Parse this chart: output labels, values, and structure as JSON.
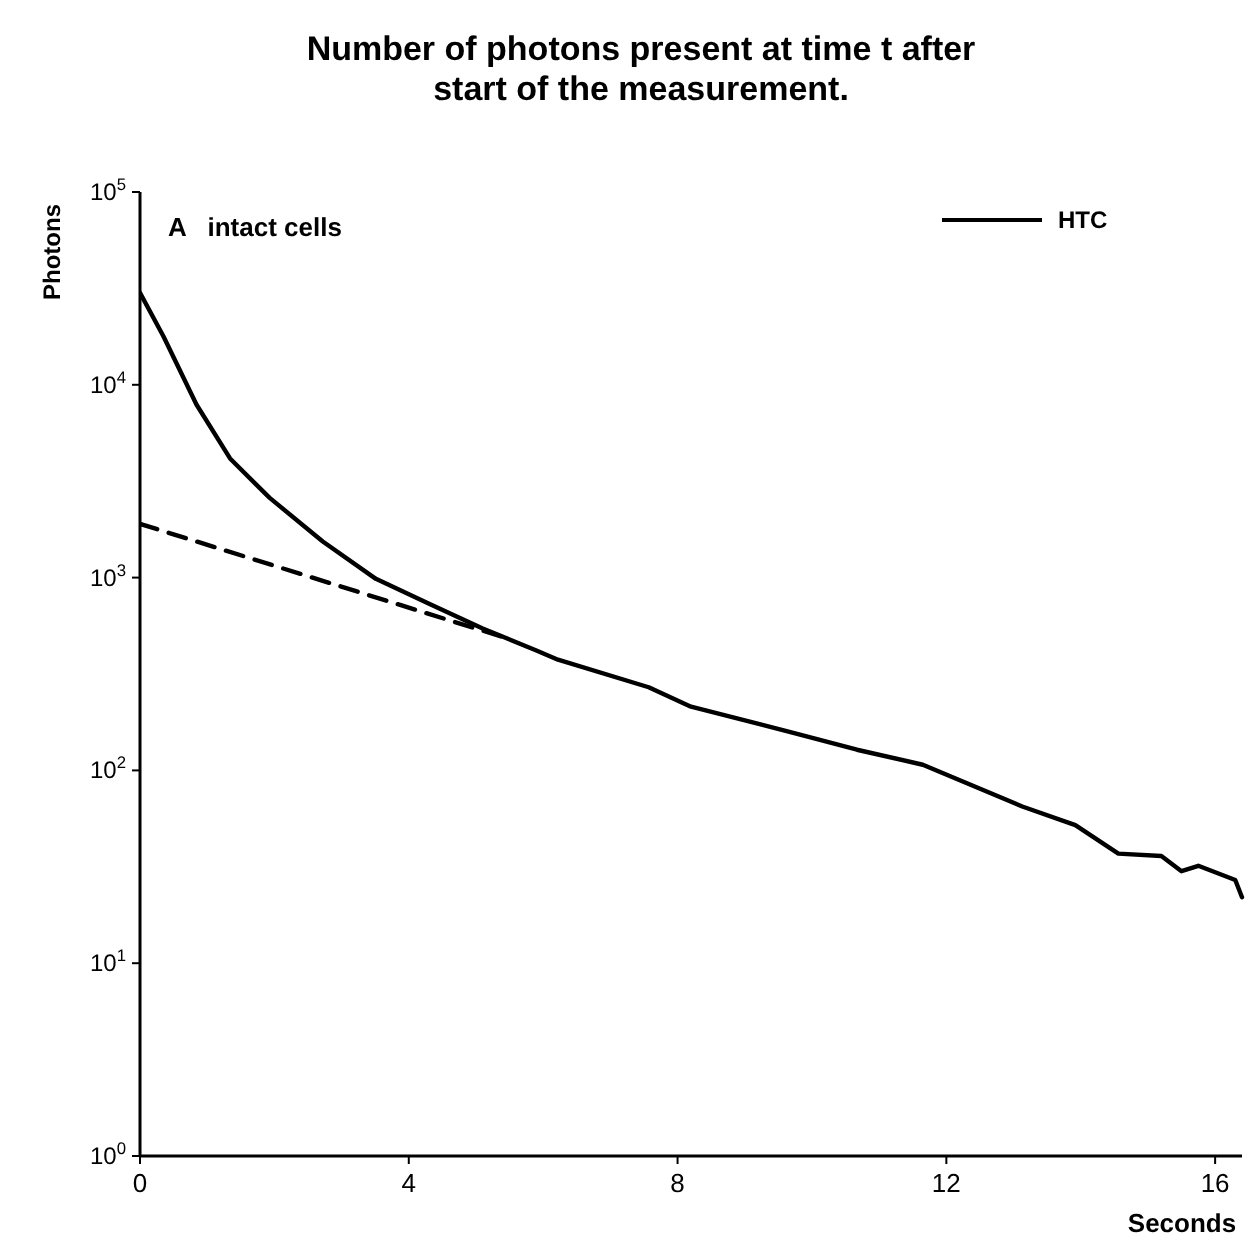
{
  "chart_data": {
    "type": "line",
    "title": "Number of photons present at time t after start of the measurement.",
    "xlabel": "Seconds",
    "ylabel": "Photons",
    "annotations": [
      "A   intact cells"
    ],
    "log": "y",
    "grid": false,
    "legend": "top right",
    "xlim": [
      0,
      16.4
    ],
    "xticks": [
      0,
      4,
      8,
      12,
      16
    ],
    "ylim": [
      1,
      100000
    ],
    "yticks": [
      {
        "value": 1,
        "label": "10$^{0}$"
      },
      {
        "value": 10,
        "label": "10$^{1}$"
      },
      {
        "value": 100,
        "label": "10$^{2}$"
      },
      {
        "value": 1000,
        "label": "10$^{3}$"
      },
      {
        "value": 10000,
        "label": "10$^{4}$"
      },
      {
        "value": 100000,
        "label": "10$^{5}$"
      }
    ],
    "series": [
      {
        "name": "HTC",
        "color": "#000000",
        "line_style": "solid",
        "x": [
          0,
          0.35,
          0.84,
          1.34,
          1.93,
          2.72,
          3.51,
          4.31,
          5.1,
          5.89,
          6.22,
          7.57,
          8.2,
          9.68,
          10.67,
          11.65,
          13.13,
          13.92,
          14.56,
          15.2,
          15.5,
          15.75,
          16.3,
          16.4
        ],
        "values": [
          30000,
          17800,
          7900,
          4150,
          2590,
          1540,
          985,
          730,
          545,
          420,
          375,
          270,
          214,
          158,
          128,
          107,
          65,
          52,
          37,
          36,
          30,
          32,
          27,
          22
        ]
      },
      {
        "color": "#000000",
        "line_style": "dashed",
        "x": [
          0,
          5.5
        ],
        "values": [
          1900,
          480
        ]
      }
    ]
  }
}
